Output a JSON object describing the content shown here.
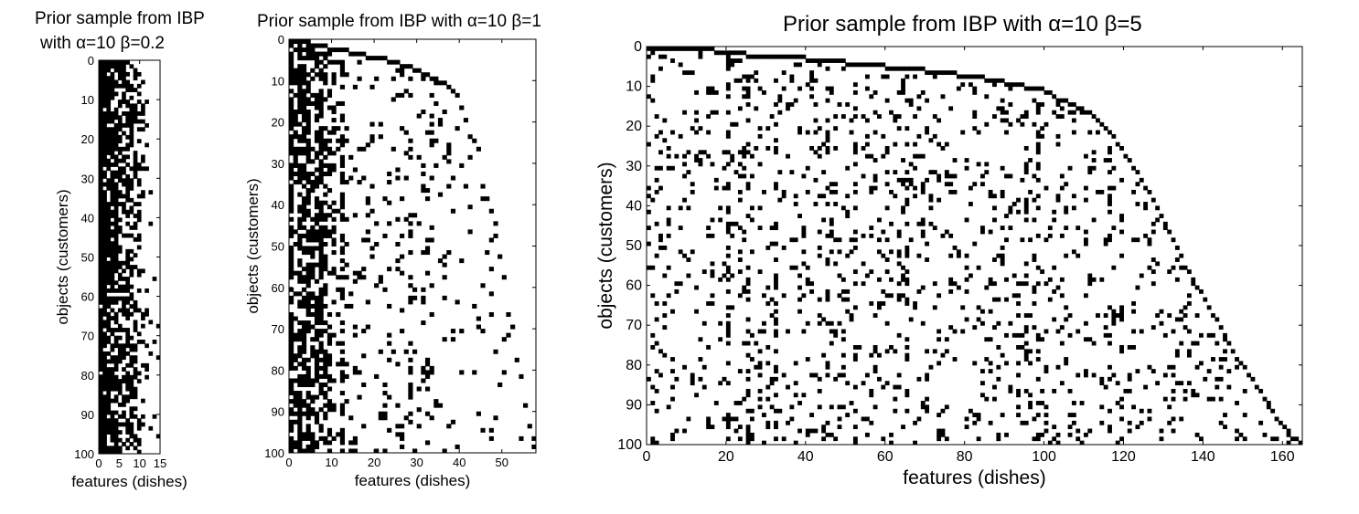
{
  "chart_data": [
    {
      "type": "heatmap",
      "title_line1": "Prior sample from IBP",
      "title_line2": "with α=10 β=0.2",
      "xlabel": "features (dishes)",
      "ylabel": "objects (customers)",
      "xlim": [
        0,
        15
      ],
      "ylim": [
        0,
        100
      ],
      "xticks": [
        0,
        5,
        10,
        15
      ],
      "yticks": [
        0,
        10,
        20,
        30,
        40,
        50,
        60,
        70,
        80,
        90,
        100
      ],
      "num_features": 16,
      "colors": {
        "on": "#000000",
        "off": "#ffffff"
      },
      "features": [
        {
          "start": 0,
          "p": 0.98
        },
        {
          "start": 0,
          "p": 0.9
        },
        {
          "start": 0,
          "p": 0.85
        },
        {
          "start": 0,
          "p": 0.75
        },
        {
          "start": 0,
          "p": 0.7
        },
        {
          "start": 0,
          "p": 0.65
        },
        {
          "start": 0,
          "p": 0.6
        },
        {
          "start": 0,
          "p": 0.55
        },
        {
          "start": 1,
          "p": 0.5
        },
        {
          "start": 2,
          "p": 0.45
        },
        {
          "start": 3,
          "p": 0.3
        },
        {
          "start": 5,
          "p": 0.18
        },
        {
          "start": 10,
          "p": 0.1
        },
        {
          "start": 33,
          "p": 0.05
        },
        {
          "start": 55,
          "p": 0.05
        },
        {
          "start": 67,
          "p": 0.05
        }
      ]
    },
    {
      "type": "heatmap",
      "title": "Prior sample from IBP with α=10 β=1",
      "xlabel": "features (dishes)",
      "ylabel": "objects (customers)",
      "xlim": [
        0,
        58
      ],
      "ylim": [
        0,
        100
      ],
      "xticks": [
        0,
        10,
        20,
        30,
        40,
        50
      ],
      "yticks": [
        0,
        10,
        20,
        30,
        40,
        50,
        60,
        70,
        80,
        90,
        100
      ],
      "num_features": 58,
      "colors": {
        "on": "#000000",
        "off": "#ffffff"
      },
      "features": [
        {
          "start": 0,
          "p": 0.85
        },
        {
          "start": 0,
          "p": 0.5
        },
        {
          "start": 0,
          "p": 0.72
        },
        {
          "start": 0,
          "p": 0.6
        },
        {
          "start": 0,
          "p": 0.7
        },
        {
          "start": 1,
          "p": 0.55
        },
        {
          "start": 1,
          "p": 0.5
        },
        {
          "start": 1,
          "p": 0.65
        },
        {
          "start": 1,
          "p": 0.45
        },
        {
          "start": 2,
          "p": 0.35
        },
        {
          "start": 2,
          "p": 0.2
        },
        {
          "start": 2,
          "p": 0.12
        },
        {
          "start": 2,
          "p": 0.6
        },
        {
          "start": 2,
          "p": 0.15
        },
        {
          "start": 3,
          "p": 0.12
        },
        {
          "start": 3,
          "p": 0.1
        },
        {
          "start": 3,
          "p": 0.1
        },
        {
          "start": 3,
          "p": 0.12
        },
        {
          "start": 4,
          "p": 0.1
        },
        {
          "start": 4,
          "p": 0.1
        },
        {
          "start": 4,
          "p": 0.12
        },
        {
          "start": 4,
          "p": 0.1
        },
        {
          "start": 4,
          "p": 0.1
        },
        {
          "start": 5,
          "p": 0.15
        },
        {
          "start": 5,
          "p": 0.1
        },
        {
          "start": 5,
          "p": 0.12
        },
        {
          "start": 6,
          "p": 0.1
        },
        {
          "start": 6,
          "p": 0.1
        },
        {
          "start": 6,
          "p": 0.2
        },
        {
          "start": 7,
          "p": 0.1
        },
        {
          "start": 7,
          "p": 0.08
        },
        {
          "start": 8,
          "p": 0.08
        },
        {
          "start": 8,
          "p": 0.1
        },
        {
          "start": 9,
          "p": 0.1
        },
        {
          "start": 9,
          "p": 0.08
        },
        {
          "start": 10,
          "p": 0.08
        },
        {
          "start": 10,
          "p": 0.08
        },
        {
          "start": 11,
          "p": 0.07
        },
        {
          "start": 12,
          "p": 0.07
        },
        {
          "start": 13,
          "p": 0.06
        },
        {
          "start": 16,
          "p": 0.06
        },
        {
          "start": 19,
          "p": 0.06
        },
        {
          "start": 23,
          "p": 0.05
        },
        {
          "start": 24,
          "p": 0.05
        },
        {
          "start": 26,
          "p": 0.05
        },
        {
          "start": 35,
          "p": 0.05
        },
        {
          "start": 38,
          "p": 0.05
        },
        {
          "start": 41,
          "p": 0.05
        },
        {
          "start": 44,
          "p": 0.05
        },
        {
          "start": 52,
          "p": 0.05
        },
        {
          "start": 57,
          "p": 0.05
        },
        {
          "start": 66,
          "p": 0.05
        },
        {
          "start": 69,
          "p": 0.04
        },
        {
          "start": 77,
          "p": 0.04
        },
        {
          "start": 81,
          "p": 0.04
        },
        {
          "start": 88,
          "p": 0.04
        },
        {
          "start": 93,
          "p": 0.03
        },
        {
          "start": 96,
          "p": 0.03
        }
      ]
    },
    {
      "type": "heatmap",
      "title": "Prior sample from IBP with α=10 β=5",
      "xlabel": "features (dishes)",
      "ylabel": "objects (customers)",
      "xlim": [
        0,
        165
      ],
      "ylim": [
        0,
        100
      ],
      "xticks": [
        0,
        20,
        40,
        60,
        80,
        100,
        120,
        140,
        160
      ],
      "yticks": [
        0,
        10,
        20,
        30,
        40,
        50,
        60,
        70,
        80,
        90,
        100
      ],
      "num_features": 165,
      "colors": {
        "on": "#000000",
        "off": "#ffffff"
      },
      "frontier": [
        [
          0,
          0
        ],
        [
          17,
          1
        ],
        [
          25,
          2
        ],
        [
          40,
          3
        ],
        [
          50,
          4
        ],
        [
          60,
          5
        ],
        [
          70,
          6
        ],
        [
          78,
          7
        ],
        [
          85,
          8
        ],
        [
          90,
          9
        ],
        [
          95,
          10
        ],
        [
          100,
          11
        ],
        [
          103,
          13
        ],
        [
          110,
          16
        ],
        [
          115,
          20
        ],
        [
          122,
          30
        ],
        [
          128,
          40
        ],
        [
          135,
          55
        ],
        [
          142,
          67
        ],
        [
          148,
          78
        ],
        [
          153,
          85
        ],
        [
          158,
          93
        ],
        [
          162,
          98
        ],
        [
          165,
          100
        ]
      ],
      "density": 0.1,
      "dense_columns": [
        20,
        25,
        32,
        45,
        52,
        65,
        95,
        98,
        116
      ]
    }
  ]
}
